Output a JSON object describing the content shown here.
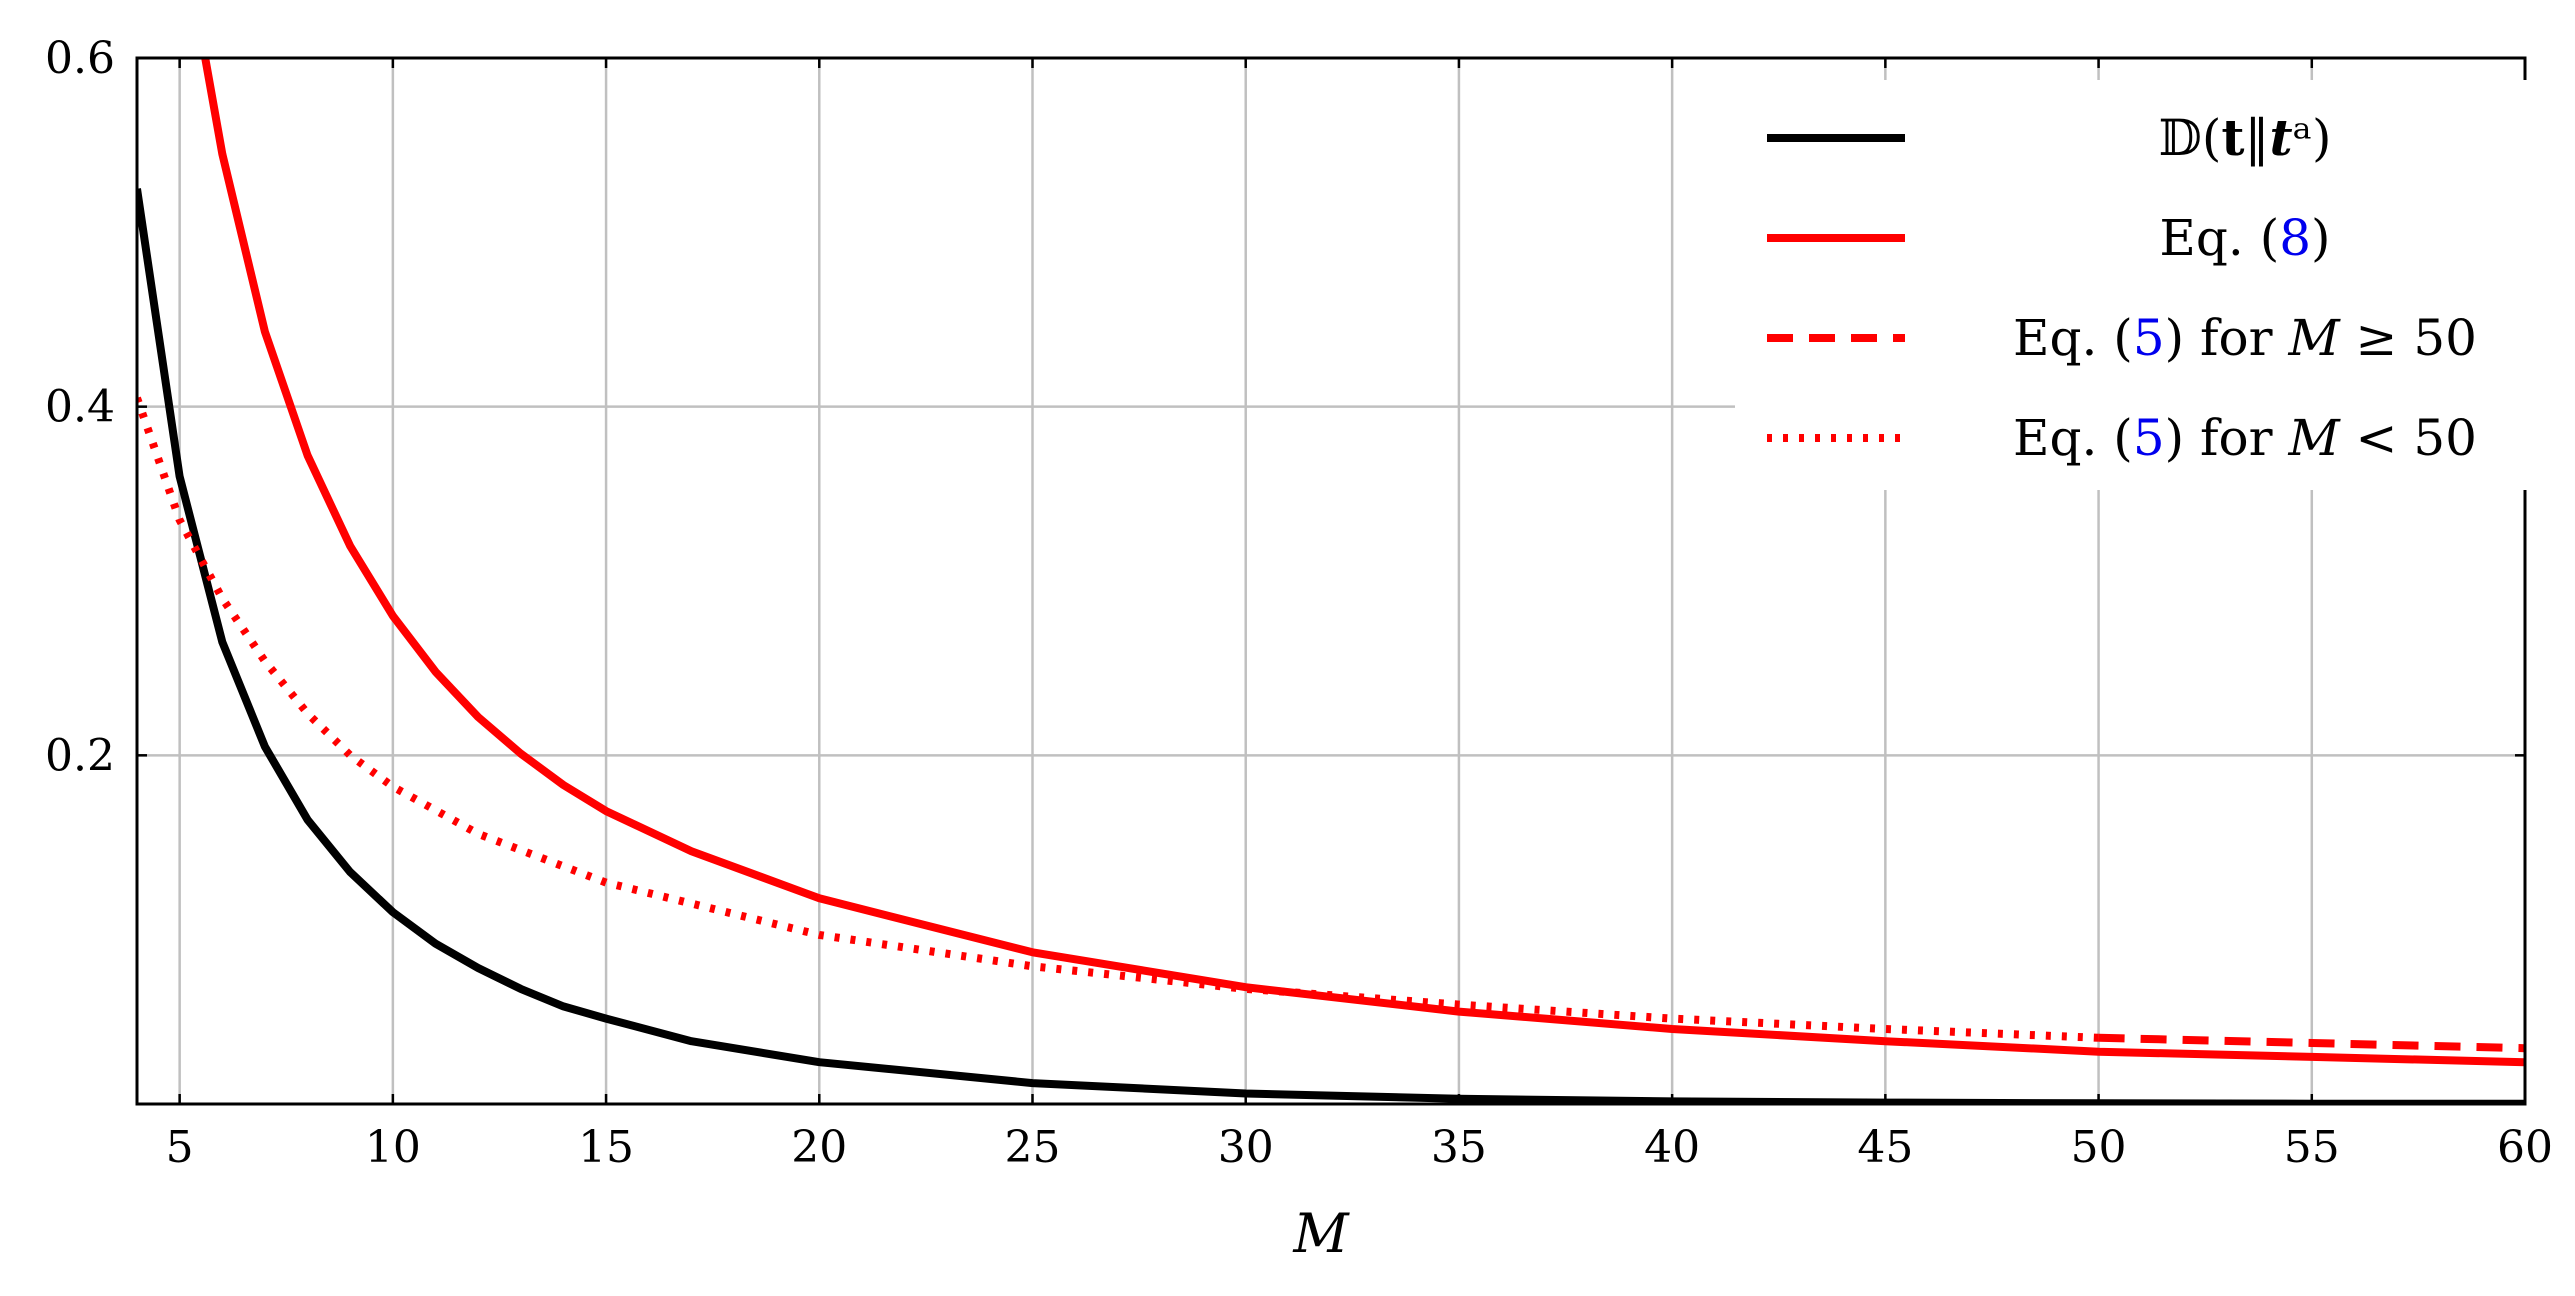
{
  "chart_data": {
    "type": "line",
    "xlabel": "M",
    "ylabel": "",
    "xlim": [
      4,
      60
    ],
    "ylim": [
      0,
      0.6
    ],
    "xticks": [
      5,
      10,
      15,
      20,
      25,
      30,
      35,
      40,
      45,
      50,
      55,
      60
    ],
    "yticks": [
      0.2,
      0.4,
      0.6
    ],
    "xtick_labels": [
      "5",
      "10",
      "15",
      "20",
      "25",
      "30",
      "35",
      "40",
      "45",
      "50",
      "55",
      "60"
    ],
    "ytick_labels": [
      "0.2",
      "0.4",
      "0.6"
    ],
    "grid": true,
    "legend_position": "top-right",
    "colors": {
      "black": "#000000",
      "red": "#ff0000",
      "grid": "#c0c0c0",
      "link": "#0000ee"
    },
    "series": [
      {
        "name": "𝔻(t‖tᵃ)",
        "color": "#000000",
        "style": "solid",
        "x": [
          4,
          5,
          6,
          7,
          8,
          9,
          10,
          11,
          12,
          13,
          14,
          15,
          17,
          20,
          25,
          30,
          35,
          40,
          45,
          50,
          55,
          60
        ],
        "y": [
          0.525,
          0.36,
          0.265,
          0.205,
          0.163,
          0.133,
          0.11,
          0.092,
          0.078,
          0.066,
          0.056,
          0.049,
          0.036,
          0.024,
          0.012,
          0.006,
          0.003,
          0.0015,
          0.0008,
          0.0004,
          0.0002,
          0.0001
        ]
      },
      {
        "name": "Eq. (8)",
        "color": "#ff0000",
        "style": "solid",
        "x": [
          5.6,
          6,
          7,
          8,
          9,
          10,
          11,
          12,
          13,
          14,
          15,
          17,
          20,
          25,
          30,
          35,
          40,
          45,
          50,
          55,
          60
        ],
        "y": [
          0.6,
          0.545,
          0.443,
          0.372,
          0.32,
          0.28,
          0.248,
          0.222,
          0.201,
          0.183,
          0.168,
          0.145,
          0.118,
          0.087,
          0.067,
          0.053,
          0.043,
          0.036,
          0.03,
          0.027,
          0.024
        ]
      },
      {
        "name": "Eq. (5) for M ≥ 50",
        "color": "#ff0000",
        "style": "dashed",
        "x": [
          50,
          55,
          60
        ],
        "y": [
          0.038,
          0.035,
          0.032
        ]
      },
      {
        "name": "Eq. (5) for M < 50",
        "color": "#ff0000",
        "style": "dotted",
        "x": [
          4,
          5,
          6,
          7,
          8,
          9,
          10,
          12,
          15,
          20,
          25,
          30,
          35,
          40,
          45,
          50
        ],
        "y": [
          0.405,
          0.335,
          0.29,
          0.254,
          0.224,
          0.2,
          0.182,
          0.155,
          0.127,
          0.097,
          0.079,
          0.066,
          0.057,
          0.049,
          0.043,
          0.038
        ]
      }
    ],
    "legend": [
      {
        "parts": [
          {
            "text": "𝔻("
          },
          {
            "text": "t",
            "bold": true
          },
          {
            "text": "‖"
          },
          {
            "text": "t",
            "italic": true,
            "bold": true
          },
          {
            "text": "ᵃ"
          },
          {
            "text": ")"
          }
        ]
      },
      {
        "parts": [
          {
            "text": "Eq. ("
          },
          {
            "text": "8",
            "link": true
          },
          {
            "text": ")"
          }
        ]
      },
      {
        "parts": [
          {
            "text": "Eq. ("
          },
          {
            "text": "5",
            "link": true
          },
          {
            "text": ") for "
          },
          {
            "text": "M",
            "italic": true
          },
          {
            "text": " ≥ 50"
          }
        ]
      },
      {
        "parts": [
          {
            "text": "Eq. ("
          },
          {
            "text": "5",
            "link": true
          },
          {
            "text": ") for "
          },
          {
            "text": "M",
            "italic": true
          },
          {
            "text": " < 50"
          }
        ]
      }
    ]
  }
}
